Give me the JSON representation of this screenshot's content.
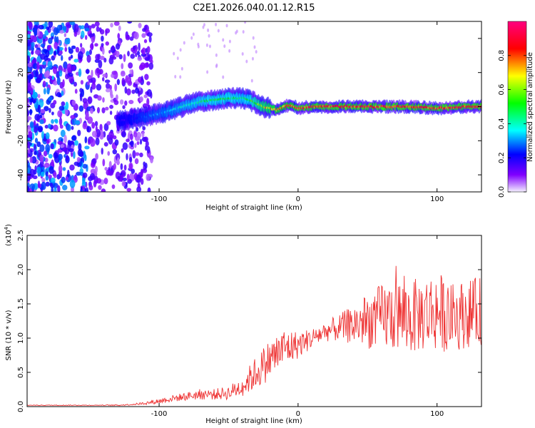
{
  "title": "C2E1.2026.040.01.12.R15",
  "chart_data": [
    {
      "type": "heatmap",
      "title": "C2E1.2026.040.01.12.R15",
      "xlabel": "Height of straight line (km)",
      "ylabel": "Frequency (Hz)",
      "xlim": [
        -195,
        132
      ],
      "ylim": [
        -50,
        50
      ],
      "xticks": [
        -100,
        0,
        100
      ],
      "xtick_labels": [
        "-100",
        "0",
        "100"
      ],
      "yticks": [
        -40,
        -20,
        0,
        20,
        40
      ],
      "ytick_labels": [
        "-40",
        "-20",
        "0",
        "20",
        "40"
      ],
      "colorbar": {
        "label": "Normalized spectral amplitude",
        "range": [
          0,
          1
        ],
        "ticks": [
          0.0,
          0.2,
          0.4,
          0.6,
          0.8
        ],
        "tick_labels": [
          "0.0",
          "0.2",
          "0.4",
          "0.6",
          "0.8"
        ],
        "colors": [
          "#f4f0ff",
          "#8000ff",
          "#0000ff",
          "#00ffff",
          "#00ff00",
          "#ffff00",
          "#ff0000",
          "#ff0080"
        ]
      },
      "ridge_trace": {
        "x": [
          -125,
          -110,
          -100,
          -90,
          -80,
          -70,
          -60,
          -50,
          -40,
          -35,
          -30,
          -25,
          -20,
          -15,
          -10,
          -5,
          0,
          10,
          20,
          40,
          60,
          80,
          100,
          120,
          132
        ],
        "frequency": [
          -8,
          -6,
          -4,
          -2,
          1,
          3,
          4,
          5,
          5,
          4,
          2,
          0,
          -1,
          -2,
          0,
          1,
          -1,
          0,
          0,
          0,
          0,
          0,
          -1,
          0,
          0
        ],
        "amplitude": [
          0.2,
          0.3,
          0.35,
          0.4,
          0.45,
          0.5,
          0.55,
          0.55,
          0.5,
          0.55,
          0.65,
          0.75,
          0.8,
          0.85,
          0.9,
          0.9,
          0.95,
          0.95,
          0.95,
          0.95,
          0.95,
          0.95,
          0.95,
          0.95,
          0.95
        ]
      }
    },
    {
      "type": "line",
      "xlabel": "Height of straight line (km)",
      "ylabel": "SNR (10 * v/v)",
      "scale_label": "(x10",
      "scale_exponent": "4",
      "scale_suffix": ")",
      "xlim": [
        -195,
        132
      ],
      "ylim": [
        0,
        2.5
      ],
      "xticks": [
        -100,
        0,
        100
      ],
      "xtick_labels": [
        "-100",
        "0",
        "100"
      ],
      "yticks": [
        0.0,
        0.5,
        1.0,
        1.5,
        2.0,
        2.5
      ],
      "ytick_labels": [
        "0.0",
        "0.5",
        "1.0",
        "1.5",
        "2.0",
        "2.5"
      ],
      "series": [
        {
          "name": "SNR",
          "color": "#ee3333",
          "x": [
            -195,
            -180,
            -160,
            -140,
            -130,
            -120,
            -110,
            -100,
            -90,
            -80,
            -70,
            -60,
            -50,
            -40,
            -30,
            -20,
            -10,
            0,
            10,
            20,
            30,
            40,
            50,
            60,
            70,
            80,
            90,
            100,
            110,
            120,
            132
          ],
          "y": [
            0.02,
            0.02,
            0.02,
            0.02,
            0.02,
            0.03,
            0.05,
            0.08,
            0.12,
            0.15,
            0.18,
            0.18,
            0.2,
            0.3,
            0.5,
            0.7,
            0.85,
            0.9,
            1.0,
            1.1,
            1.15,
            1.2,
            1.25,
            1.3,
            1.35,
            1.3,
            1.35,
            1.4,
            1.3,
            1.35,
            1.4
          ],
          "noise": [
            0.005,
            0.005,
            0.005,
            0.005,
            0.01,
            0.01,
            0.02,
            0.04,
            0.05,
            0.06,
            0.08,
            0.08,
            0.1,
            0.15,
            0.25,
            0.3,
            0.3,
            0.2,
            0.15,
            0.15,
            0.2,
            0.3,
            0.4,
            0.5,
            0.55,
            0.55,
            0.55,
            0.6,
            0.5,
            0.5,
            0.5
          ]
        }
      ]
    }
  ]
}
